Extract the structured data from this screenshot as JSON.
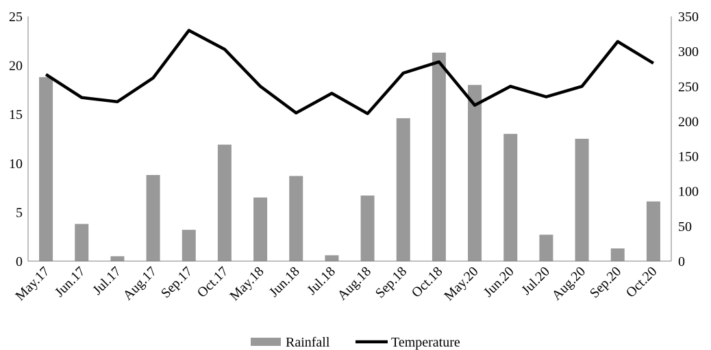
{
  "chart_data": {
    "type": "bar",
    "title": "",
    "xlabel": "",
    "ylabel": "",
    "categories": [
      "May.17",
      "Jun.17",
      "Jul.17",
      "Aug.17",
      "Sep.17",
      "Oct.17",
      "May.18",
      "Jun.18",
      "Jul.18",
      "Aug.18",
      "Sep.18",
      "Oct.18",
      "May.20",
      "Jun.20",
      "Jul.20",
      "Aug.20",
      "Sep.20",
      "Oct.20"
    ],
    "left_axis": {
      "min": 0,
      "max": 25,
      "ticks": [
        0,
        5,
        10,
        15,
        20,
        25
      ]
    },
    "right_axis": {
      "min": 0,
      "max": 350,
      "ticks": [
        0,
        50,
        100,
        150,
        200,
        250,
        300,
        350
      ]
    },
    "grid": false,
    "legend_position": "bottom",
    "series": [
      {
        "name": "Rainfall",
        "type": "bar",
        "axis": "left",
        "color": "#999999",
        "values": [
          18.8,
          3.8,
          0.5,
          8.8,
          3.2,
          11.9,
          6.5,
          8.7,
          0.6,
          6.7,
          14.6,
          21.3,
          18.0,
          13.0,
          2.7,
          12.5,
          1.3,
          6.1
        ]
      },
      {
        "name": "Temperature",
        "type": "line",
        "axis": "right",
        "color": "#000000",
        "values": [
          267,
          234,
          228,
          262,
          330,
          303,
          250,
          212,
          240,
          211,
          269,
          285,
          223,
          250,
          235,
          250,
          314,
          283
        ]
      }
    ]
  }
}
